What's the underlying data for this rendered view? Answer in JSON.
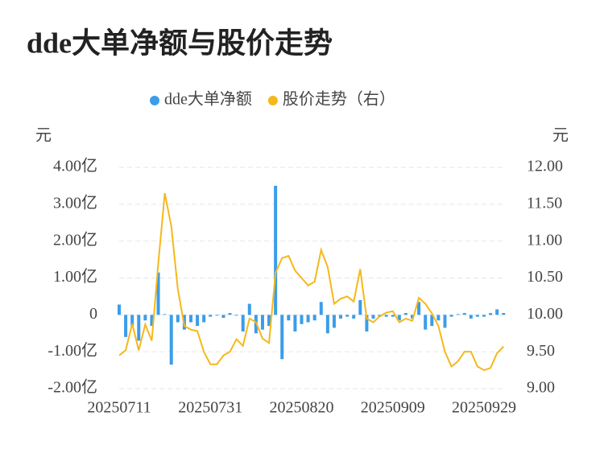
{
  "chart_data": {
    "type": "bar-line",
    "title": "dde大单净额与股价走势",
    "y_unit": "元",
    "y2_unit": "元",
    "categories": [
      "20250711",
      null,
      null,
      null,
      null,
      null,
      null,
      null,
      null,
      null,
      null,
      null,
      null,
      null,
      "20250731",
      null,
      null,
      null,
      null,
      null,
      null,
      null,
      null,
      null,
      null,
      null,
      null,
      null,
      "20250820",
      null,
      null,
      null,
      null,
      null,
      null,
      null,
      null,
      null,
      null,
      null,
      null,
      null,
      "20250909",
      null,
      null,
      null,
      null,
      null,
      null,
      null,
      null,
      null,
      null,
      null,
      null,
      null,
      "20250929",
      null,
      null,
      null
    ],
    "series": [
      {
        "name": "dde大单净额",
        "color": "#3b9de8",
        "type": "bar",
        "values": [
          0.28,
          -0.6,
          -0.3,
          -0.7,
          -0.15,
          -0.3,
          1.15,
          0.02,
          -1.35,
          -0.2,
          -0.4,
          -0.2,
          -0.3,
          -0.2,
          -0.05,
          -0.02,
          -0.08,
          0.05,
          -0.02,
          -0.45,
          0.3,
          -0.5,
          -0.4,
          -0.3,
          3.5,
          -1.2,
          -0.15,
          -0.45,
          -0.25,
          -0.2,
          -0.15,
          0.35,
          -0.5,
          -0.35,
          -0.1,
          -0.05,
          -0.1,
          0.4,
          -0.45,
          -0.1,
          -0.05,
          -0.05,
          -0.05,
          -0.15,
          0.05,
          -0.1,
          0.35,
          -0.4,
          -0.3,
          -0.15,
          -0.35,
          -0.05,
          0.02,
          0.05,
          -0.1,
          -0.05,
          -0.05,
          0.05,
          0.15,
          0.05
        ]
      },
      {
        "name": "股价走势（右）",
        "color": "#f5b81c",
        "type": "line",
        "axis": "y2",
        "values": [
          9.45,
          9.52,
          9.88,
          9.52,
          9.87,
          9.65,
          10.7,
          11.65,
          11.2,
          10.35,
          9.85,
          9.8,
          9.78,
          9.5,
          9.33,
          9.33,
          9.45,
          9.5,
          9.67,
          9.58,
          9.95,
          9.9,
          9.68,
          9.62,
          10.57,
          10.77,
          10.8,
          10.6,
          10.5,
          10.4,
          10.45,
          10.88,
          10.65,
          10.15,
          10.22,
          10.25,
          10.18,
          10.62,
          9.95,
          9.9,
          9.98,
          10.03,
          10.05,
          9.9,
          9.95,
          9.92,
          10.23,
          10.15,
          10.02,
          9.85,
          9.5,
          9.3,
          9.37,
          9.5,
          9.5,
          9.3,
          9.25,
          9.28,
          9.48,
          9.57
        ]
      }
    ],
    "ylim": [
      -2,
      4
    ],
    "yticks": [
      {
        "value": -2,
        "label": "-2.00亿"
      },
      {
        "value": -1,
        "label": "-1.00亿"
      },
      0,
      {
        "value": 1,
        "label": "1.00亿"
      },
      {
        "value": 2,
        "label": "2.00亿"
      },
      {
        "value": 3,
        "label": "3.00亿"
      },
      {
        "value": 4,
        "label": "4.00亿"
      }
    ],
    "y2lim": [
      9,
      12
    ],
    "y2ticks": [
      {
        "value": 9,
        "label": "9.00"
      },
      {
        "value": 9.5,
        "label": "9.50"
      },
      {
        "value": 10,
        "label": "10.00"
      },
      {
        "value": 10.5,
        "label": "10.50"
      },
      {
        "value": 11,
        "label": "11.00"
      },
      {
        "value": 11.5,
        "label": "11.50"
      },
      {
        "value": 12,
        "label": "12.00"
      }
    ],
    "grid": true
  }
}
